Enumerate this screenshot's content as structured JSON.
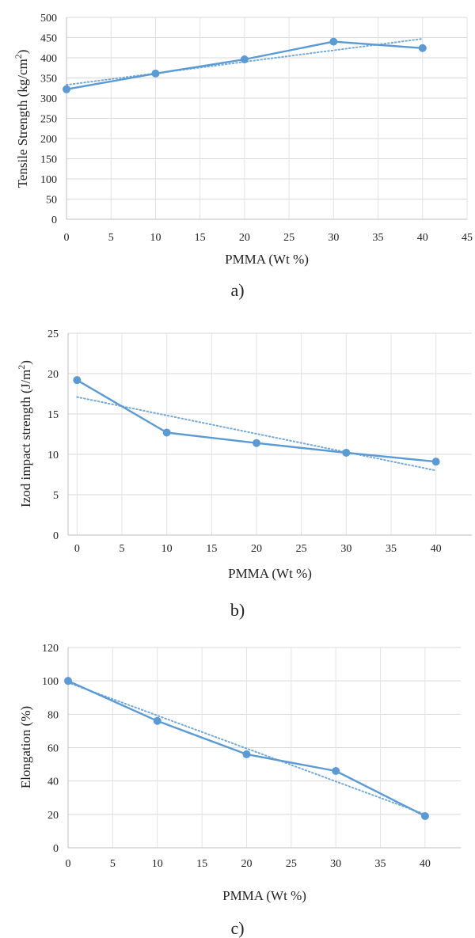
{
  "chart_data": [
    {
      "type": "line",
      "caption": "a)",
      "xlabel": "PMMA (Wt %)",
      "ylabel": "Tensile Strength (kg/cm",
      "ylabel_sup": "2",
      "ylabel_end": ")",
      "xlim": [
        0,
        45
      ],
      "ylim": [
        0,
        500
      ],
      "xticks": [
        0,
        5,
        10,
        15,
        20,
        25,
        30,
        35,
        40,
        45
      ],
      "yticks": [
        0,
        50,
        100,
        150,
        200,
        250,
        300,
        350,
        400,
        450,
        500
      ],
      "grid": true,
      "series": [
        {
          "values": [
            [
              0,
              322
            ],
            [
              10,
              361
            ],
            [
              20,
              396
            ],
            [
              30,
              440
            ],
            [
              40,
              424
            ]
          ],
          "color": "#5b9bd5",
          "style": "solid",
          "markers": true
        },
        {
          "values": [
            [
              0,
              333
            ],
            [
              40,
              447
            ]
          ],
          "color": "#5b9bd5",
          "style": "dotted",
          "markers": false
        }
      ]
    },
    {
      "type": "line",
      "caption": "b)",
      "xlabel": "PMMA (Wt %)",
      "ylabel": "Izod impact strength (J/m",
      "ylabel_sup": "2",
      "ylabel_end": ")",
      "xlim": [
        -1,
        44
      ],
      "ylim": [
        0,
        25
      ],
      "xticks": [
        0,
        5,
        10,
        15,
        20,
        25,
        30,
        35,
        40
      ],
      "yticks": [
        0,
        5,
        10,
        15,
        20,
        25
      ],
      "grid": true,
      "series": [
        {
          "values": [
            [
              0,
              19.2
            ],
            [
              10,
              12.7
            ],
            [
              20,
              11.4
            ],
            [
              30,
              10.2
            ],
            [
              40,
              9.1
            ]
          ],
          "color": "#5b9bd5",
          "style": "solid",
          "markers": true
        },
        {
          "values": [
            [
              0,
              17.1
            ],
            [
              40,
              8.0
            ]
          ],
          "color": "#5b9bd5",
          "style": "dotted",
          "markers": false
        }
      ]
    },
    {
      "type": "line",
      "caption": "c)",
      "xlabel": "PMMA (Wt %)",
      "ylabel": "Elongation (%)",
      "ylabel_sup": "",
      "ylabel_end": "",
      "xlim": [
        0,
        44
      ],
      "ylim": [
        0,
        120
      ],
      "xticks": [
        0,
        5,
        10,
        15,
        20,
        25,
        30,
        35,
        40
      ],
      "yticks": [
        0,
        20,
        40,
        60,
        80,
        100,
        120
      ],
      "grid": true,
      "series": [
        {
          "values": [
            [
              0,
              100
            ],
            [
              10,
              76
            ],
            [
              20,
              56
            ],
            [
              30,
              46
            ],
            [
              40,
              19
            ]
          ],
          "color": "#5b9bd5",
          "style": "solid",
          "markers": true
        },
        {
          "values": [
            [
              0,
              99
            ],
            [
              40,
              20
            ]
          ],
          "color": "#5b9bd5",
          "style": "dotted",
          "markers": false
        }
      ]
    }
  ]
}
